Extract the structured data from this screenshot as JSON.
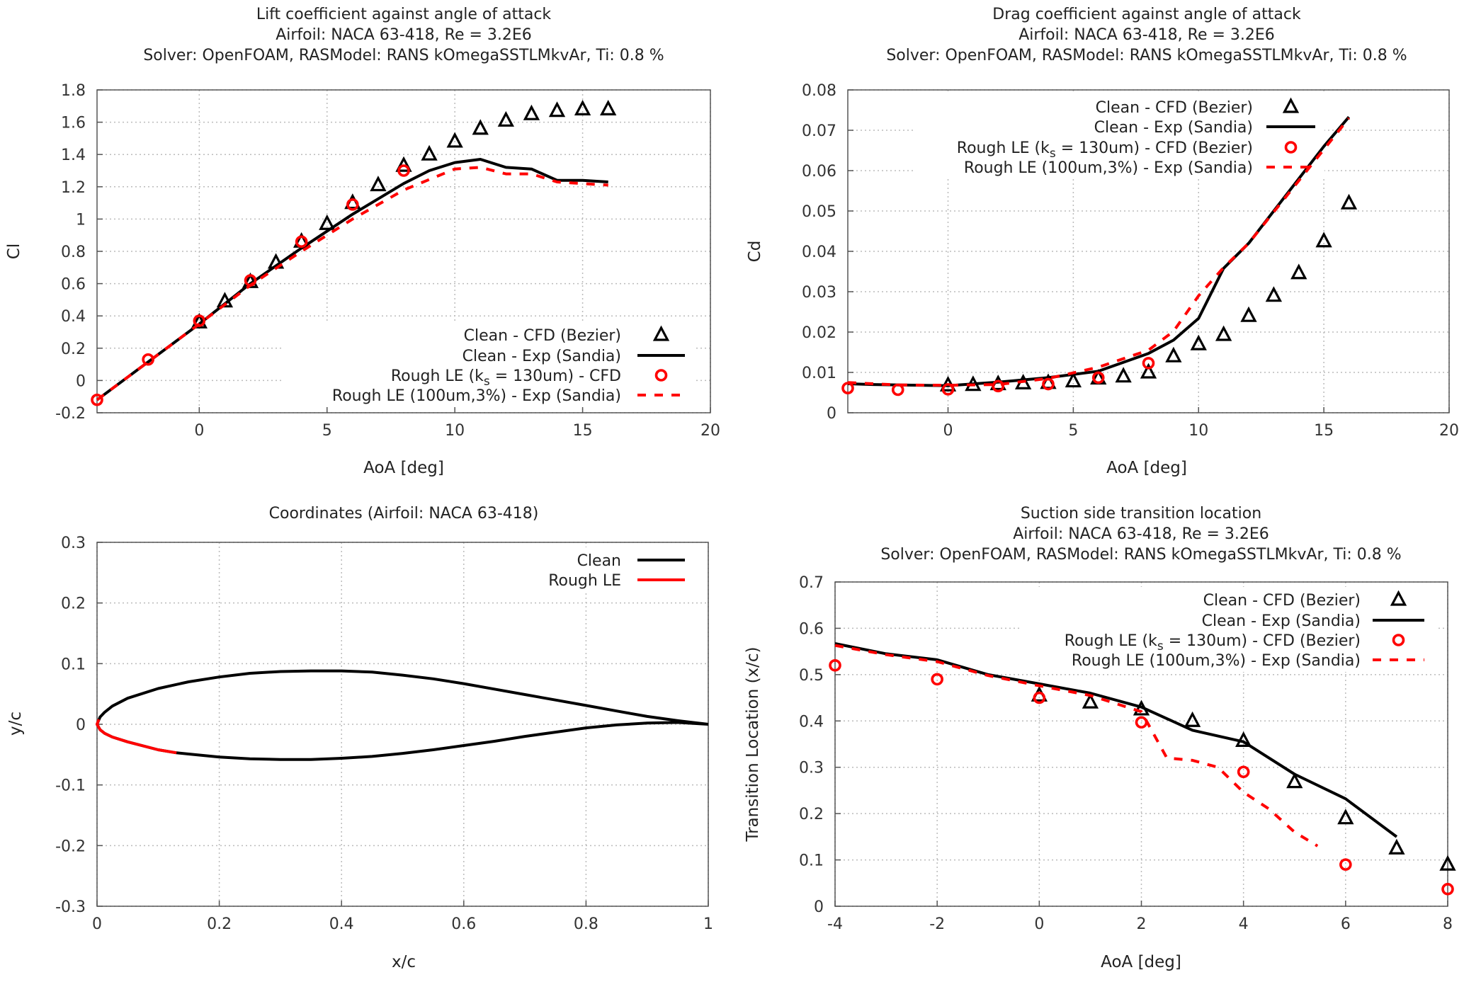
{
  "chart_data": [
    {
      "type": "line",
      "id": "lift",
      "title": [
        "Lift coefficient against angle of attack",
        "Airfoil: NACA 63-418, Re = 3.2E6",
        "Solver: OpenFOAM, RASModel: RANS kOmegaSSTLMkvAr, Ti: 0.8 %"
      ],
      "xlabel": "AoA [deg]",
      "ylabel": "Cl",
      "xlim": [
        -4,
        20
      ],
      "ylim": [
        -0.2,
        1.8
      ],
      "xticks": [
        0,
        5,
        10,
        15,
        20
      ],
      "xticklabels": [
        "0",
        "5",
        "10",
        "15",
        "20"
      ],
      "yticks": [
        -0.2,
        0,
        0.2,
        0.4,
        0.6,
        0.8,
        1,
        1.2,
        1.4,
        1.6,
        1.8
      ],
      "yticklabels": [
        "-0.2",
        "0",
        "0.2",
        "0.4",
        "0.6",
        "0.8",
        "1",
        "1.2",
        "1.4",
        "1.6",
        "1.8"
      ],
      "grid": true,
      "legend": "bottom-right",
      "series": [
        {
          "name": "Clean - CFD (Bezier)",
          "style": "triangle",
          "color": "#000000",
          "x": [
            0,
            1,
            2,
            3,
            4,
            5,
            6,
            7,
            8,
            9,
            10,
            11,
            12,
            13,
            14,
            15,
            16
          ],
          "y": [
            0.36,
            0.49,
            0.61,
            0.73,
            0.86,
            0.97,
            1.1,
            1.21,
            1.33,
            1.4,
            1.48,
            1.56,
            1.61,
            1.65,
            1.67,
            1.68,
            1.68
          ]
        },
        {
          "name": "Clean - Exp (Sandia)",
          "style": "solid",
          "color": "#000000",
          "x": [
            -4,
            0,
            2,
            4,
            6,
            8,
            9,
            10,
            11,
            12,
            13,
            14,
            15,
            16
          ],
          "y": [
            -0.12,
            0.35,
            0.6,
            0.82,
            1.03,
            1.22,
            1.3,
            1.35,
            1.37,
            1.32,
            1.31,
            1.24,
            1.24,
            1.23
          ]
        },
        {
          "name": "Rough LE (k_s = 130um)  - CFD",
          "style": "circle",
          "color": "#ff0000",
          "x": [
            -4,
            -2,
            0,
            2,
            4,
            6,
            8
          ],
          "y": [
            -0.12,
            0.13,
            0.37,
            0.62,
            0.86,
            1.09,
            1.3
          ]
        },
        {
          "name": "Rough LE (100um,3%) - Exp (Sandia)",
          "style": "dashed",
          "color": "#ff0000",
          "x": [
            -4,
            0,
            2,
            4,
            6,
            8,
            10,
            11,
            12,
            13,
            14,
            16
          ],
          "y": [
            -0.12,
            0.35,
            0.59,
            0.8,
            1.0,
            1.18,
            1.31,
            1.32,
            1.28,
            1.28,
            1.23,
            1.21
          ]
        }
      ]
    },
    {
      "type": "line",
      "id": "drag",
      "title": [
        "Drag coefficient against angle of attack",
        "Airfoil: NACA 63-418, Re = 3.2E6",
        "Solver: OpenFOAM, RASModel: RANS kOmegaSSTLMkvAr, Ti: 0.8 %"
      ],
      "xlabel": "AoA [deg]",
      "ylabel": "Cd",
      "xlim": [
        -4,
        20
      ],
      "ylim": [
        0,
        0.08
      ],
      "xticks": [
        0,
        5,
        10,
        15,
        20
      ],
      "xticklabels": [
        "0",
        "5",
        "10",
        "15",
        "20"
      ],
      "yticks": [
        0,
        0.01,
        0.02,
        0.03,
        0.04,
        0.05,
        0.06,
        0.07,
        0.08
      ],
      "yticklabels": [
        "0",
        "0.01",
        "0.02",
        "0.03",
        "0.04",
        "0.05",
        "0.06",
        "0.07",
        "0.08"
      ],
      "grid": true,
      "legend": "top-right",
      "series": [
        {
          "name": "Clean - CFD (Bezier)",
          "style": "triangle",
          "color": "#000000",
          "x": [
            0,
            1,
            2,
            3,
            4,
            5,
            6,
            7,
            8,
            9,
            10,
            11,
            12,
            13,
            14,
            15,
            16
          ],
          "y": [
            0.0068,
            0.0069,
            0.0071,
            0.0073,
            0.0074,
            0.0078,
            0.0085,
            0.009,
            0.01,
            0.014,
            0.017,
            0.0193,
            0.024,
            0.029,
            0.0346,
            0.0425,
            0.0519
          ]
        },
        {
          "name": "Clean - Exp (Sandia)",
          "style": "solid",
          "color": "#000000",
          "x": [
            -4,
            -3,
            0,
            2,
            4,
            6,
            8,
            9,
            10,
            11,
            12,
            13,
            14,
            15,
            16
          ],
          "y": [
            0.0072,
            0.007,
            0.0067,
            0.0076,
            0.0087,
            0.0103,
            0.0147,
            0.018,
            0.0234,
            0.0358,
            0.042,
            0.05,
            0.058,
            0.066,
            0.0733
          ]
        },
        {
          "name": "Rough LE (k_s = 130um)  - CFD (Bezier)",
          "style": "circle",
          "color": "#ff0000",
          "x": [
            -4,
            -2,
            0,
            2,
            4,
            6,
            8
          ],
          "y": [
            0.0061,
            0.0057,
            0.0058,
            0.0066,
            0.0071,
            0.0087,
            0.0123
          ]
        },
        {
          "name": "Rough LE (100um,3%) - Exp (Sandia)",
          "style": "dashed",
          "color": "#ff0000",
          "x": [
            -4,
            -2,
            0,
            2,
            4,
            6,
            8,
            9,
            10,
            11,
            12,
            16
          ],
          "y": [
            0.0075,
            0.0069,
            0.0068,
            0.007,
            0.0085,
            0.0113,
            0.0155,
            0.0202,
            0.029,
            0.036,
            0.042,
            0.073
          ]
        }
      ]
    },
    {
      "type": "line",
      "id": "coords",
      "title": [
        "Coordinates (Airfoil: NACA 63-418)"
      ],
      "xlabel": "x/c",
      "ylabel": "y/c",
      "xlim": [
        0,
        1
      ],
      "ylim": [
        -0.3,
        0.3
      ],
      "xticks": [
        0,
        0.2,
        0.4,
        0.6,
        0.8,
        1
      ],
      "xticklabels": [
        "0",
        "0.2",
        "0.4",
        "0.6",
        "0.8",
        "1"
      ],
      "yticks": [
        -0.3,
        -0.2,
        -0.1,
        0,
        0.1,
        0.2,
        0.3
      ],
      "yticklabels": [
        "-0.3",
        "-0.2",
        "-0.1",
        "0",
        "0.1",
        "0.2",
        "0.3"
      ],
      "grid": true,
      "legend": "top-right",
      "series": [
        {
          "name": "Clean",
          "style": "solid",
          "color": "#000000",
          "x": [
            1,
            0.95,
            0.9,
            0.85,
            0.8,
            0.75,
            0.7,
            0.65,
            0.6,
            0.55,
            0.5,
            0.45,
            0.4,
            0.35,
            0.3,
            0.25,
            0.2,
            0.15,
            0.1,
            0.05,
            0.025,
            0.0125,
            0.005,
            0,
            0.005,
            0.0125,
            0.025,
            0.05,
            0.1,
            0.13,
            0.15,
            0.2,
            0.25,
            0.3,
            0.35,
            0.4,
            0.45,
            0.5,
            0.55,
            0.6,
            0.65,
            0.7,
            0.75,
            0.8,
            0.85,
            0.9,
            0.95,
            1
          ],
          "y": [
            0,
            0.006,
            0.013,
            0.022,
            0.031,
            0.04,
            0.049,
            0.058,
            0.067,
            0.075,
            0.081,
            0.086,
            0.088,
            0.088,
            0.087,
            0.084,
            0.078,
            0.07,
            0.059,
            0.043,
            0.03,
            0.02,
            0.012,
            0,
            -0.009,
            -0.015,
            -0.021,
            -0.029,
            -0.042,
            -0.047,
            -0.049,
            -0.054,
            -0.057,
            -0.058,
            -0.058,
            -0.056,
            -0.053,
            -0.048,
            -0.042,
            -0.035,
            -0.028,
            -0.02,
            -0.013,
            -0.006,
            -0.001,
            0.002,
            0.003,
            0
          ]
        },
        {
          "name": "Rough LE",
          "style": "solid",
          "color": "#ff0000",
          "x": [
            0.003,
            0,
            0.005,
            0.0125,
            0.025,
            0.05,
            0.1,
            0.13
          ],
          "y": [
            0.008,
            0,
            -0.009,
            -0.015,
            -0.021,
            -0.029,
            -0.042,
            -0.047
          ]
        }
      ]
    },
    {
      "type": "line",
      "id": "transition",
      "title": [
        "Suction side transition location",
        "Airfoil: NACA 63-418, Re = 3.2E6",
        "Solver: OpenFOAM, RASModel: RANS kOmegaSSTLMkvAr, Ti: 0.8 %"
      ],
      "xlabel": "AoA [deg]",
      "ylabel": "Transition Location (x/c)",
      "xlim": [
        -4,
        8
      ],
      "ylim": [
        0,
        0.7
      ],
      "xticks": [
        -4,
        -2,
        0,
        2,
        4,
        6,
        8
      ],
      "xticklabels": [
        "-4",
        "-2",
        "0",
        "2",
        "4",
        "6",
        "8"
      ],
      "yticks": [
        0,
        0.1,
        0.2,
        0.3,
        0.4,
        0.5,
        0.6,
        0.7
      ],
      "yticklabels": [
        "0",
        "0.1",
        "0.2",
        "0.3",
        "0.4",
        "0.5",
        "0.6",
        "0.7"
      ],
      "grid": true,
      "legend": "top-right",
      "series": [
        {
          "name": "Clean - CFD (Bezier)",
          "style": "triangle",
          "color": "#000000",
          "x": [
            0,
            1,
            2,
            3,
            4,
            5,
            6,
            7,
            8
          ],
          "y": [
            0.455,
            0.44,
            0.425,
            0.4,
            0.357,
            0.268,
            0.19,
            0.125,
            0.09
          ]
        },
        {
          "name": "Clean - Exp (Sandia)",
          "style": "solid",
          "color": "#000000",
          "x": [
            -4,
            -3,
            -2,
            -1,
            0,
            1,
            2,
            3,
            4,
            5,
            6,
            7
          ],
          "y": [
            0.567,
            0.545,
            0.532,
            0.5,
            0.48,
            0.46,
            0.43,
            0.38,
            0.355,
            0.285,
            0.232,
            0.15
          ]
        },
        {
          "name": "Rough LE (k_s = 130um) - CFD (Bezier)",
          "style": "circle",
          "color": "#ff0000",
          "x": [
            -4,
            -2,
            0,
            2,
            4,
            6,
            8
          ],
          "y": [
            0.52,
            0.49,
            0.45,
            0.397,
            0.29,
            0.09,
            0.037
          ]
        },
        {
          "name": "Rough LE (100um,3%) - Exp (Sandia)",
          "style": "dashed",
          "color": "#ff0000",
          "x": [
            -4,
            -3,
            -2,
            -1,
            0,
            1,
            2,
            2.5,
            3,
            3.5,
            4,
            4.5,
            5,
            5.45
          ],
          "y": [
            0.563,
            0.543,
            0.528,
            0.498,
            0.476,
            0.455,
            0.42,
            0.32,
            0.315,
            0.3,
            0.246,
            0.21,
            0.16,
            0.13
          ]
        }
      ]
    }
  ]
}
